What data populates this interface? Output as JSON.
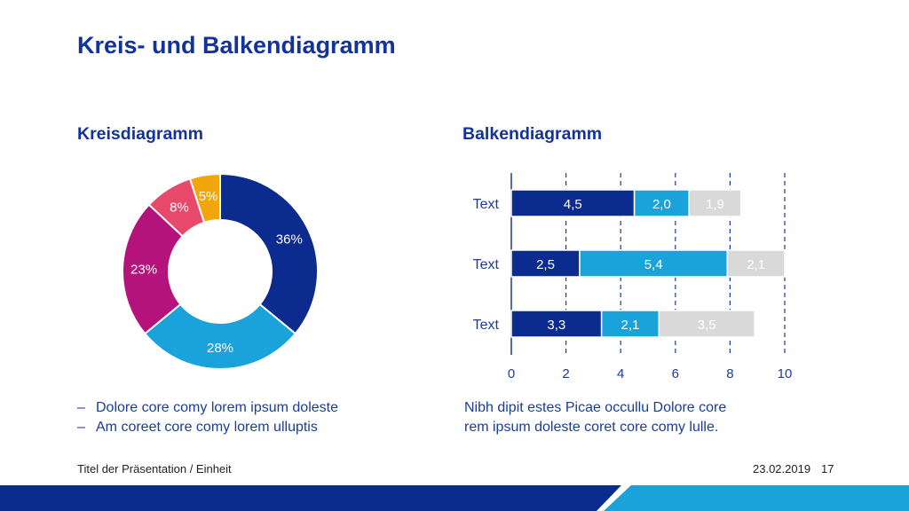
{
  "slide": {
    "title": "Kreis- und Balkendiagramm",
    "pie_heading": "Kreisdiagramm",
    "bar_heading": "Balkendiagramm",
    "bullets": [
      "Dolore core comy lorem ipsum doleste",
      "Am coreet core comy lorem ulluptis"
    ],
    "bullet_marker": "–",
    "bar_caption_lines": [
      "Nibh dipit estes Picae occullu Dolore core",
      "rem ipsum doleste coret core comy lulle."
    ]
  },
  "footer": {
    "presentation": "Titel der Präsentation / Einheit",
    "date": "23.02.2019",
    "page": "17"
  },
  "chart_data": [
    {
      "type": "pie",
      "variant": "donut",
      "title": "Kreisdiagramm",
      "slices": [
        {
          "label": "36%",
          "value": 36,
          "color": "#0c2b8f"
        },
        {
          "label": "28%",
          "value": 28,
          "color": "#1aa3db"
        },
        {
          "label": "23%",
          "value": 23,
          "color": "#b5137c"
        },
        {
          "label": "8%",
          "value": 8,
          "color": "#e8486a"
        },
        {
          "label": "5%",
          "value": 5,
          "color": "#f2a60c"
        }
      ]
    },
    {
      "type": "bar",
      "orientation": "horizontal",
      "stacked": true,
      "title": "Balkendiagramm",
      "categories": [
        "Text",
        "Text",
        "Text"
      ],
      "series": [
        {
          "color": "#0c2b8f",
          "label_color": "#ffffff",
          "values": [
            4.5,
            2.5,
            3.3
          ],
          "labels": [
            "4,5",
            "2,5",
            "3,3"
          ]
        },
        {
          "color": "#1aa3db",
          "label_color": "#ffffff",
          "values": [
            2.0,
            5.4,
            2.1
          ],
          "labels": [
            "2,0",
            "5,4",
            "2,1"
          ]
        },
        {
          "color": "#d9d9d9",
          "label_color": "#ffffff",
          "values": [
            1.9,
            2.1,
            3.5
          ],
          "labels": [
            "1,9",
            "2,1",
            "3,5"
          ]
        }
      ],
      "xlim": [
        0,
        10
      ],
      "xticks": [
        "0",
        "2",
        "4",
        "6",
        "8",
        "10"
      ],
      "grid": "vertical dashed"
    }
  ]
}
